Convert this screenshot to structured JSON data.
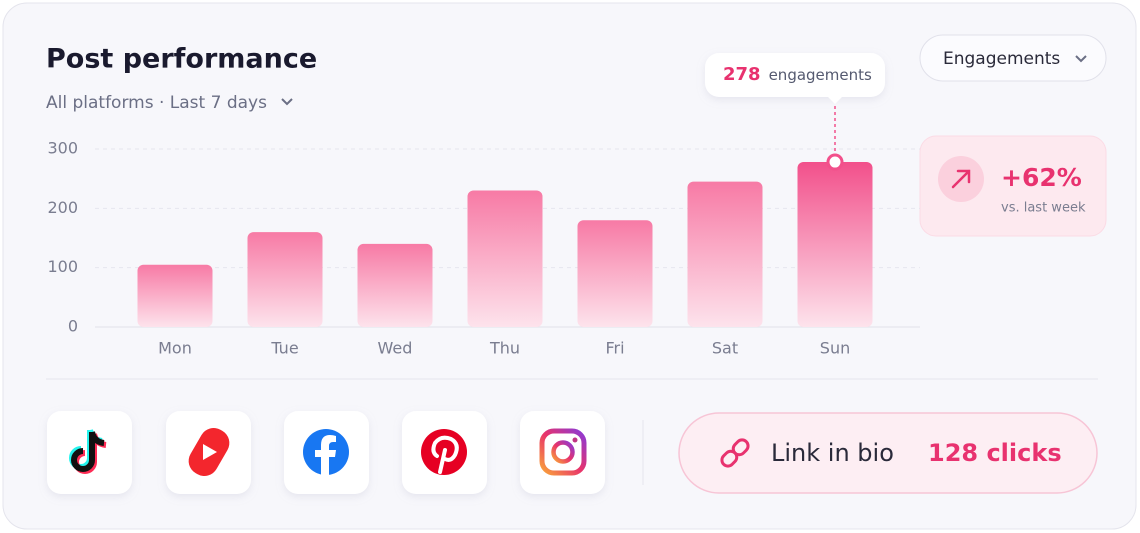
{
  "chart_data": {
    "type": "bar",
    "title": "Post performance",
    "subtitle": "All platforms · Last 7 days",
    "categories": [
      "Mon",
      "Tue",
      "Wed",
      "Thu",
      "Fri",
      "Sat",
      "Sun"
    ],
    "values": [
      105,
      160,
      140,
      230,
      180,
      245,
      278
    ],
    "colors": [
      "#f77aa5",
      "#f77aa5",
      "#f77aa5",
      "#f77aa5",
      "#f77aa5",
      "#f77aa5",
      "#f2508b"
    ],
    "ylim": [
      0,
      300
    ],
    "yticks": [
      0,
      100,
      200,
      300
    ],
    "grid": true,
    "tooltip_unit": "engagements"
  },
  "metric_selector": "Engagements",
  "stat": {
    "change": "+62%",
    "comparison": "vs. last week"
  },
  "link": {
    "label": "Link in bio",
    "clicks": "128 clicks"
  }
}
